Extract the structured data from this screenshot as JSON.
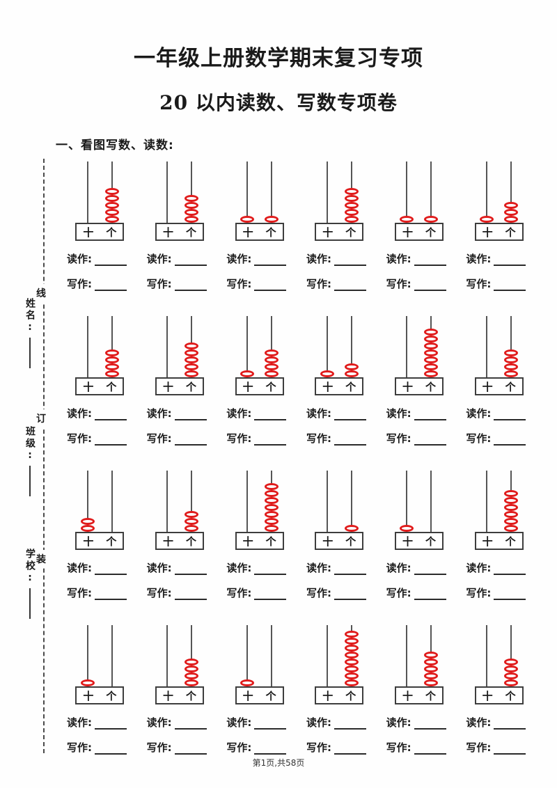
{
  "header": {
    "title": "一年级上册数学期末复习专项",
    "subtitle": "20 以内读数、写数专项卷",
    "section_heading": "一、看图写数、读数:"
  },
  "binding_margin": {
    "chars": [
      "线",
      "订",
      "装"
    ],
    "fields": [
      {
        "label": "姓名:"
      },
      {
        "label": "班级:"
      },
      {
        "label": "学校:"
      }
    ]
  },
  "abacus": {
    "place_labels": {
      "tens": "十",
      "ones": "个"
    },
    "read_label": "读作:",
    "write_label": "写作:",
    "bead_color": "#e01b1b",
    "rows": [
      [
        {
          "tens": 0,
          "ones": 5,
          "value": 5
        },
        {
          "tens": 0,
          "ones": 4,
          "value": 4
        },
        {
          "tens": 1,
          "ones": 1,
          "value": 11
        },
        {
          "tens": 0,
          "ones": 5,
          "value": 5
        },
        {
          "tens": 1,
          "ones": 1,
          "value": 11
        },
        {
          "tens": 1,
          "ones": 3,
          "value": 13
        }
      ],
      [
        {
          "tens": 0,
          "ones": 4,
          "value": 4
        },
        {
          "tens": 0,
          "ones": 5,
          "value": 5
        },
        {
          "tens": 1,
          "ones": 4,
          "value": 14
        },
        {
          "tens": 1,
          "ones": 2,
          "value": 12
        },
        {
          "tens": 0,
          "ones": 7,
          "value": 7
        },
        {
          "tens": 0,
          "ones": 4,
          "value": 4
        }
      ],
      [
        {
          "tens": 2,
          "ones": 0,
          "value": 20
        },
        {
          "tens": 0,
          "ones": 3,
          "value": 3
        },
        {
          "tens": 0,
          "ones": 7,
          "value": 7
        },
        {
          "tens": 0,
          "ones": 1,
          "value": 1
        },
        {
          "tens": 1,
          "ones": 0,
          "value": 10
        },
        {
          "tens": 0,
          "ones": 6,
          "value": 6
        }
      ],
      [
        {
          "tens": 1,
          "ones": 0,
          "value": 10
        },
        {
          "tens": 0,
          "ones": 4,
          "value": 4
        },
        {
          "tens": 1,
          "ones": 0,
          "value": 10
        },
        {
          "tens": 0,
          "ones": 8,
          "value": 8
        },
        {
          "tens": 0,
          "ones": 5,
          "value": 5
        },
        {
          "tens": 0,
          "ones": 4,
          "value": 4
        }
      ]
    ]
  },
  "footer": {
    "page_text": "第1页,共58页"
  }
}
